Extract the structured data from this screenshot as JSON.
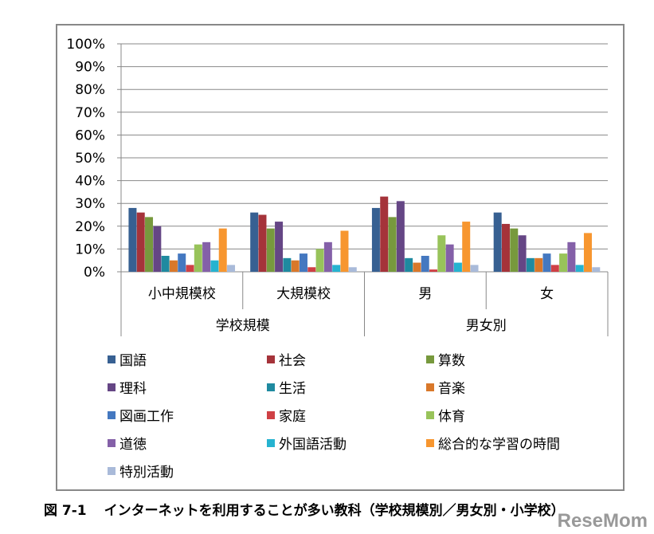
{
  "chart_data": {
    "type": "bar",
    "title": "",
    "ylim": [
      0,
      100
    ],
    "yticks": [
      "0%",
      "10%",
      "20%",
      "30%",
      "40%",
      "50%",
      "60%",
      "70%",
      "80%",
      "90%",
      "100%"
    ],
    "categories": [
      "小中規模校",
      "大規模校",
      "男",
      "女"
    ],
    "category_groups": [
      {
        "label": "学校規模",
        "span": 2
      },
      {
        "label": "男女別",
        "span": 2
      }
    ],
    "series": [
      {
        "name": "国語",
        "color": "#376092",
        "values": [
          28,
          26,
          28,
          26
        ]
      },
      {
        "name": "社会",
        "color": "#A5333A",
        "values": [
          26,
          25,
          33,
          21
        ]
      },
      {
        "name": "算数",
        "color": "#77993D",
        "values": [
          24,
          19,
          24,
          19
        ]
      },
      {
        "name": "理科",
        "color": "#654685",
        "values": [
          20,
          22,
          31,
          16
        ]
      },
      {
        "name": "生活",
        "color": "#1F8AA0",
        "values": [
          7,
          6,
          6,
          6
        ]
      },
      {
        "name": "音楽",
        "color": "#D9782A",
        "values": [
          5,
          5,
          4,
          6
        ]
      },
      {
        "name": "図画工作",
        "color": "#4478C0",
        "values": [
          8,
          8,
          7,
          8
        ]
      },
      {
        "name": "家庭",
        "color": "#CF4045",
        "values": [
          3,
          2,
          1,
          3
        ]
      },
      {
        "name": "体育",
        "color": "#98C35A",
        "values": [
          12,
          10,
          16,
          8
        ]
      },
      {
        "name": "道徳",
        "color": "#8460A8",
        "values": [
          13,
          13,
          12,
          13
        ]
      },
      {
        "name": "外国語活動",
        "color": "#26B3D0",
        "values": [
          5,
          3,
          4,
          3
        ]
      },
      {
        "name": "総合的な学習の時間",
        "color": "#F7962F",
        "values": [
          19,
          18,
          22,
          17
        ]
      },
      {
        "name": "特別活動",
        "color": "#A9BAD9",
        "values": [
          3,
          2,
          3,
          2
        ]
      }
    ],
    "legend_position": "bottom",
    "grid": true
  },
  "caption": {
    "figure": "図 7-1",
    "text": "インターネットを利用することが多い教科（学校規模別／男女別・小学校）"
  },
  "watermark": "ReseMom"
}
